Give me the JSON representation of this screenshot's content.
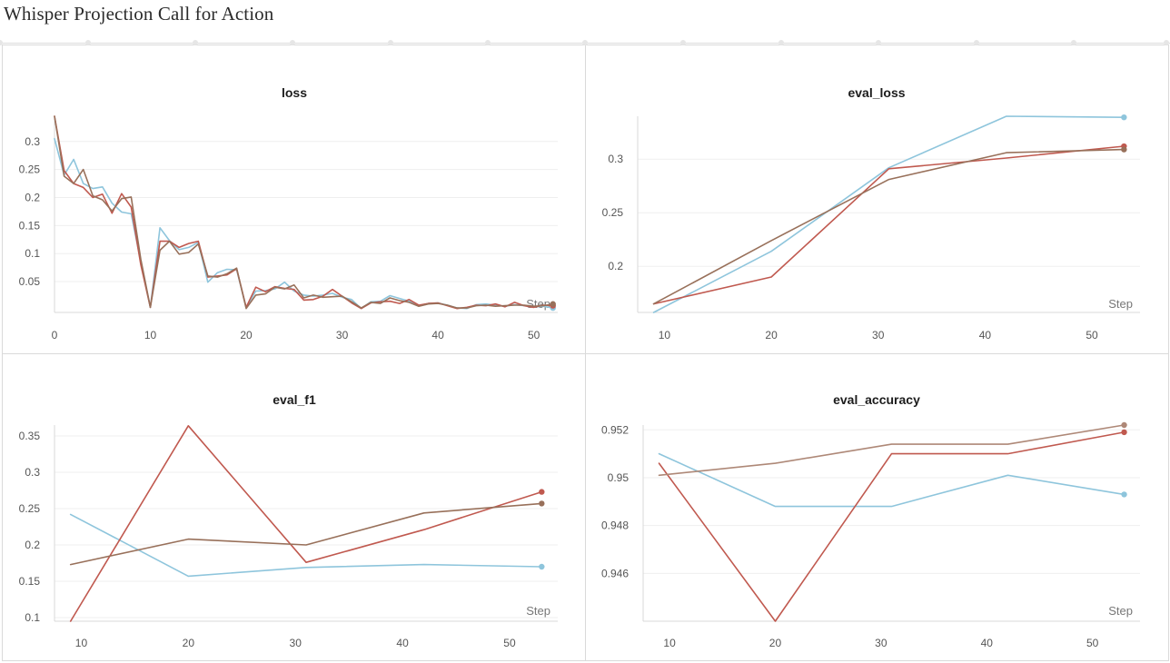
{
  "report": {
    "title": "Whisper Projection Call for Action"
  },
  "colors": {
    "run_blue": "#8ec5dc",
    "run_red": "#c0594f",
    "run_brown": "#98705a"
  },
  "chart_data": [
    {
      "id": "loss",
      "type": "line",
      "title": "loss",
      "xlabel": "Step",
      "xlim": [
        0,
        52.5
      ],
      "ylim": [
        -0.005,
        0.345
      ],
      "xticks": [
        0,
        10,
        20,
        30,
        40,
        50
      ],
      "yticks": [
        0.05,
        0.1,
        0.15,
        0.2,
        0.25,
        0.3
      ],
      "ytick_labels": [
        "0.05",
        "0.1",
        "0.15",
        "0.2",
        "0.25",
        "0.3"
      ],
      "series": [
        {
          "color": "#8ec5dc",
          "x": [
            0,
            1,
            2,
            3,
            4,
            5,
            6,
            7,
            8,
            9,
            10,
            11,
            12,
            13,
            14,
            15,
            16,
            17,
            18,
            19,
            20,
            21,
            22,
            23,
            24,
            25,
            26,
            27,
            28,
            29,
            30,
            31,
            32,
            33,
            34,
            35,
            36,
            37,
            38,
            39,
            40,
            41,
            42,
            43,
            44,
            45,
            46,
            47,
            48,
            49,
            50,
            51,
            52
          ],
          "y": [
            0.305,
            0.24,
            0.268,
            0.225,
            0.216,
            0.219,
            0.19,
            0.174,
            0.171,
            0.085,
            0.004,
            0.146,
            0.123,
            0.107,
            0.111,
            0.12,
            0.049,
            0.066,
            0.072,
            0.071,
            0.004,
            0.033,
            0.034,
            0.037,
            0.049,
            0.033,
            0.026,
            0.024,
            0.026,
            0.029,
            0.022,
            0.018,
            0.002,
            0.014,
            0.015,
            0.025,
            0.02,
            0.015,
            0.007,
            0.011,
            0.012,
            0.008,
            0.003,
            0.002,
            0.009,
            0.01,
            0.008,
            0.006,
            0.009,
            0.007,
            0.005,
            0.006,
            0.003
          ]
        },
        {
          "color": "#c0594f",
          "x": [
            0,
            1,
            2,
            3,
            4,
            5,
            6,
            7,
            8,
            9,
            10,
            11,
            12,
            13,
            14,
            15,
            16,
            17,
            18,
            19,
            20,
            21,
            22,
            23,
            24,
            25,
            26,
            27,
            28,
            29,
            30,
            31,
            32,
            33,
            34,
            35,
            36,
            37,
            38,
            39,
            40,
            41,
            42,
            43,
            44,
            45,
            46,
            47,
            48,
            49,
            50,
            51,
            52
          ],
          "y": [
            0.345,
            0.248,
            0.225,
            0.218,
            0.2,
            0.206,
            0.172,
            0.207,
            0.183,
            0.08,
            0.004,
            0.122,
            0.122,
            0.111,
            0.118,
            0.122,
            0.058,
            0.06,
            0.062,
            0.073,
            0.004,
            0.04,
            0.032,
            0.041,
            0.038,
            0.036,
            0.017,
            0.018,
            0.024,
            0.036,
            0.024,
            0.012,
            0.002,
            0.012,
            0.014,
            0.015,
            0.011,
            0.018,
            0.008,
            0.011,
            0.012,
            0.007,
            0.002,
            0.004,
            0.008,
            0.007,
            0.01,
            0.005,
            0.013,
            0.007,
            0.004,
            0.008,
            0.007
          ]
        },
        {
          "color": "#98705a",
          "x": [
            0,
            1,
            2,
            3,
            4,
            5,
            6,
            7,
            8,
            9,
            10,
            11,
            12,
            13,
            14,
            15,
            16,
            17,
            18,
            19,
            20,
            21,
            22,
            23,
            24,
            25,
            26,
            27,
            28,
            29,
            30,
            31,
            32,
            33,
            34,
            35,
            36,
            37,
            38,
            39,
            40,
            41,
            42,
            43,
            44,
            45,
            46,
            47,
            48,
            49,
            50,
            51,
            52
          ],
          "y": [
            0.345,
            0.238,
            0.225,
            0.25,
            0.203,
            0.196,
            0.176,
            0.198,
            0.201,
            0.09,
            0.004,
            0.106,
            0.122,
            0.099,
            0.102,
            0.117,
            0.06,
            0.058,
            0.064,
            0.074,
            0.002,
            0.026,
            0.028,
            0.04,
            0.037,
            0.044,
            0.021,
            0.026,
            0.022,
            0.023,
            0.024,
            0.014,
            0.003,
            0.013,
            0.011,
            0.021,
            0.016,
            0.013,
            0.006,
            0.01,
            0.011,
            0.008,
            0.003,
            0.003,
            0.007,
            0.008,
            0.006,
            0.007,
            0.008,
            0.008,
            0.006,
            0.007,
            0.01
          ]
        }
      ]
    },
    {
      "id": "eval_loss",
      "type": "line",
      "title": "eval_loss",
      "xlabel": "Step",
      "xlim": [
        7.5,
        54.5
      ],
      "ylim": [
        0.157,
        0.34
      ],
      "xticks": [
        10,
        20,
        30,
        40,
        50
      ],
      "yticks": [
        0.2,
        0.25,
        0.3
      ],
      "ytick_labels": [
        "0.2",
        "0.25",
        "0.3"
      ],
      "series": [
        {
          "color": "#8ec5dc",
          "x": [
            9,
            20,
            31,
            42,
            53
          ],
          "y": [
            0.157,
            0.214,
            0.292,
            0.34,
            0.339
          ],
          "end_dot": true
        },
        {
          "color": "#c0594f",
          "x": [
            9,
            20,
            31,
            42,
            53
          ],
          "y": [
            0.165,
            0.19,
            0.291,
            0.301,
            0.312
          ],
          "end_dot": true
        },
        {
          "color": "#98705a",
          "x": [
            9,
            20,
            31,
            42,
            53
          ],
          "y": [
            0.165,
            0.224,
            0.281,
            0.306,
            0.309
          ],
          "end_dot": true
        }
      ]
    },
    {
      "id": "eval_f1",
      "type": "line",
      "title": "eval_f1",
      "xlabel": "Step",
      "xlim": [
        7.5,
        54.5
      ],
      "ylim": [
        0.095,
        0.365
      ],
      "xticks": [
        10,
        20,
        30,
        40,
        50
      ],
      "yticks": [
        0.1,
        0.15,
        0.2,
        0.25,
        0.3,
        0.35
      ],
      "ytick_labels": [
        "0.1",
        "0.15",
        "0.2",
        "0.25",
        "0.3",
        "0.35"
      ],
      "series": [
        {
          "color": "#8ec5dc",
          "x": [
            9,
            20,
            31,
            42,
            53
          ],
          "y": [
            0.242,
            0.157,
            0.169,
            0.173,
            0.17
          ],
          "end_dot": true
        },
        {
          "color": "#c0594f",
          "x": [
            9,
            20,
            31,
            42,
            53
          ],
          "y": [
            0.095,
            0.364,
            0.176,
            0.221,
            0.273
          ],
          "end_dot": true
        },
        {
          "color": "#98705a",
          "x": [
            9,
            20,
            31,
            42,
            53
          ],
          "y": [
            0.173,
            0.208,
            0.2,
            0.244,
            0.257
          ],
          "end_dot": true
        }
      ]
    },
    {
      "id": "eval_accuracy",
      "type": "line",
      "title": "eval_accuracy",
      "xlabel": "Step",
      "xlim": [
        7.5,
        54.5
      ],
      "ylim": [
        0.944,
        0.9522
      ],
      "xticks": [
        10,
        20,
        30,
        40,
        50
      ],
      "yticks": [
        0.946,
        0.948,
        0.95,
        0.952
      ],
      "ytick_labels": [
        "0.946",
        "0.948",
        "0.95",
        "0.952"
      ],
      "series": [
        {
          "color": "#8ec5dc",
          "x": [
            9,
            20,
            31,
            42,
            53
          ],
          "y": [
            0.951,
            0.9488,
            0.9488,
            0.9501,
            0.9493
          ],
          "end_dot": true
        },
        {
          "color": "#c0594f",
          "x": [
            9,
            20,
            31,
            42,
            53
          ],
          "y": [
            0.9506,
            0.944,
            0.951,
            0.951,
            0.9519
          ],
          "end_dot": true
        },
        {
          "color": "#ae8877",
          "x": [
            9,
            20,
            31,
            42,
            53
          ],
          "y": [
            0.9501,
            0.9506,
            0.9514,
            0.9514,
            0.9522
          ],
          "end_dot": true
        }
      ]
    }
  ]
}
